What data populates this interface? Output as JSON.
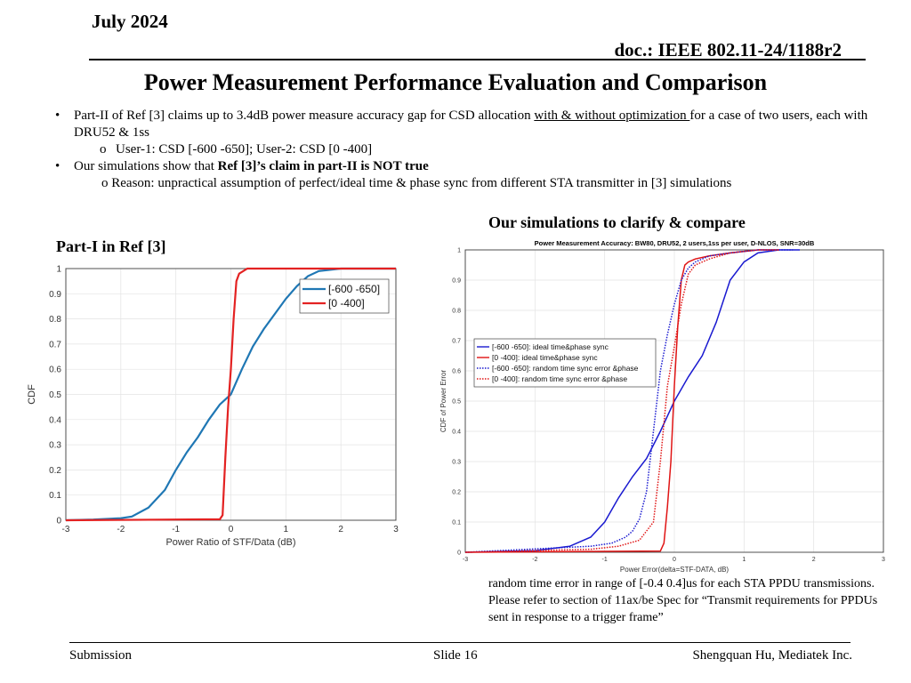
{
  "header": {
    "date": "July 2024",
    "doc": "doc.: IEEE 802.11-24/1188r2"
  },
  "title": "Power Measurement Performance Evaluation and Comparison",
  "bullets": {
    "b1_pre": "Part-II of Ref [3] claims up to 3.4dB power measure accuracy gap for CSD allocation ",
    "b1_underline": "with & without optimization ",
    "b1_post": "for a case of two users, each with DRU52 & 1ss",
    "b1_sub_marker": "o",
    "b1_sub": "User-1: CSD [-600 -650]; User-2: CSD [0 -400]",
    "b2_pre": "Our simulations show that ",
    "b2_bold": "Ref [3]’s claim in part-II is NOT true",
    "b2_sub": "o  Reason: unpractical assumption of perfect/ideal time & phase sync from different STA transmitter in [3] simulations"
  },
  "caption_right": "Our simulations to clarify & compare",
  "caption_left": "Part-I in Ref [3]",
  "note": "random time error in range of  [-0.4 0.4]us for each STA PPDU transmissions. Please refer to section of 11ax/be Spec for “Transmit requirements for PPDUs sent in response to a trigger frame”",
  "footer": {
    "left": "Submission",
    "center": "Slide 16",
    "right": "Shengquan Hu, Mediatek Inc."
  },
  "chart_data": [
    {
      "type": "line",
      "title": "",
      "xlabel": "Power Ratio of STF/Data (dB)",
      "ylabel": "CDF",
      "xlim": [
        -3,
        3
      ],
      "ylim": [
        0,
        1
      ],
      "xticks": [
        "-3",
        "-2",
        "-1",
        "0",
        "1",
        "2",
        "3"
      ],
      "yticks": [
        "0",
        "0.1",
        "0.2",
        "0.3",
        "0.4",
        "0.5",
        "0.6",
        "0.7",
        "0.8",
        "0.9",
        "1"
      ],
      "grid": true,
      "legend": "top-right",
      "series": [
        {
          "name": "[-600 -650]",
          "color": "#1f77b4",
          "x": [
            -3,
            -2.5,
            -2,
            -1.8,
            -1.5,
            -1.2,
            -1,
            -0.8,
            -0.6,
            -0.4,
            -0.2,
            0,
            0.2,
            0.4,
            0.6,
            0.8,
            1,
            1.2,
            1.4,
            1.6,
            2,
            2.5,
            3
          ],
          "y": [
            0,
            0.003,
            0.008,
            0.015,
            0.05,
            0.12,
            0.2,
            0.27,
            0.33,
            0.4,
            0.46,
            0.5,
            0.6,
            0.69,
            0.76,
            0.82,
            0.88,
            0.93,
            0.97,
            0.99,
            1.0,
            1.0,
            1.0
          ]
        },
        {
          "name": "[0 -400]",
          "color": "#e32222",
          "x": [
            -3,
            -0.2,
            -0.15,
            -0.1,
            -0.05,
            0,
            0.05,
            0.1,
            0.15,
            0.3,
            0.6,
            3
          ],
          "y": [
            0,
            0.004,
            0.02,
            0.25,
            0.45,
            0.6,
            0.8,
            0.95,
            0.98,
            1.0,
            1.0,
            1.0
          ]
        }
      ]
    },
    {
      "type": "line",
      "title": "Power Measurement Accuracy: BW80, DRU52, 2 users,1ss per user, D-NLOS, SNR=30dB",
      "xlabel": "Power Error(delta=STF-DATA, dB)",
      "ylabel": "CDF of Power Error",
      "xlim": [
        -3,
        3
      ],
      "ylim": [
        0,
        1
      ],
      "xticks": [
        "-3",
        "-2",
        "-1",
        "0",
        "1",
        "2",
        "3"
      ],
      "yticks": [
        "0",
        "0.1",
        "0.2",
        "0.3",
        "0.4",
        "0.5",
        "0.6",
        "0.7",
        "0.8",
        "0.9",
        "1"
      ],
      "grid": true,
      "legend": "center-left",
      "series": [
        {
          "name": "[-600 -650]: ideal time&phase sync",
          "color": "#1a1ad0",
          "dash": "solid",
          "x": [
            -3,
            -2,
            -1.5,
            -1.2,
            -1,
            -0.8,
            -0.6,
            -0.4,
            -0.2,
            0,
            0.2,
            0.4,
            0.6,
            0.8,
            1,
            1.2,
            1.5,
            1.8
          ],
          "y": [
            0,
            0.005,
            0.02,
            0.05,
            0.1,
            0.18,
            0.25,
            0.31,
            0.4,
            0.5,
            0.58,
            0.65,
            0.76,
            0.9,
            0.96,
            0.99,
            1.0,
            1.0
          ]
        },
        {
          "name": "[0 -400]: ideal time&phase sync",
          "color": "#e01414",
          "dash": "solid",
          "x": [
            -3,
            -0.2,
            -0.15,
            -0.1,
            -0.05,
            0,
            0.05,
            0.1,
            0.15,
            0.2,
            0.3,
            0.5,
            0.8,
            1.2,
            1.5
          ],
          "y": [
            0,
            0.004,
            0.03,
            0.15,
            0.3,
            0.55,
            0.75,
            0.9,
            0.95,
            0.96,
            0.97,
            0.98,
            0.99,
            1.0,
            1.0
          ]
        },
        {
          "name": "[-600 -650]: random time sync error &phase",
          "color": "#1a1ad0",
          "dash": "dot",
          "x": [
            -3,
            -1.2,
            -0.9,
            -0.7,
            -0.6,
            -0.5,
            -0.4,
            -0.3,
            -0.2,
            -0.1,
            0,
            0.1,
            0.2,
            0.3,
            0.5,
            0.8,
            1.2,
            1.7
          ],
          "y": [
            0,
            0.02,
            0.03,
            0.05,
            0.07,
            0.11,
            0.2,
            0.4,
            0.6,
            0.72,
            0.82,
            0.9,
            0.94,
            0.96,
            0.98,
            0.99,
            1.0,
            1.0
          ]
        },
        {
          "name": "[0 -400]: random time sync error &phase",
          "color": "#e01414",
          "dash": "dot",
          "x": [
            -3,
            -1.2,
            -0.8,
            -0.5,
            -0.3,
            -0.2,
            -0.1,
            0,
            0.1,
            0.2,
            0.3,
            0.5,
            0.8,
            1.2,
            1.5
          ],
          "y": [
            0,
            0.01,
            0.02,
            0.04,
            0.1,
            0.3,
            0.55,
            0.68,
            0.82,
            0.92,
            0.95,
            0.97,
            0.99,
            1.0,
            1.0
          ]
        }
      ]
    }
  ]
}
